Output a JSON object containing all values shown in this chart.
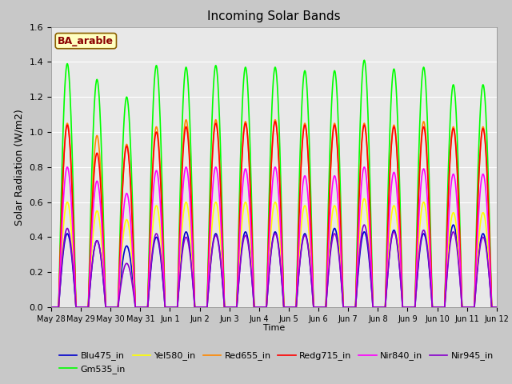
{
  "title": "Incoming Solar Bands",
  "xlabel": "Time",
  "ylabel": "Solar Radiation (W/m2)",
  "ylim": [
    0,
    1.6
  ],
  "fig_bg": "#c8c8c8",
  "plot_bg": "#e8e8e8",
  "annotation_text": "BA_arable",
  "annotation_color": "#8b0000",
  "annotation_bg": "#ffffc0",
  "annotation_border": "#8b6000",
  "series": [
    {
      "label": "Blu475_in",
      "color": "#0000cc",
      "lw": 1.2
    },
    {
      "label": "Gm535_in",
      "color": "#00ff00",
      "lw": 1.2
    },
    {
      "label": "Yel580_in",
      "color": "#ffff00",
      "lw": 1.2
    },
    {
      "label": "Red655_in",
      "color": "#ff8800",
      "lw": 1.2
    },
    {
      "label": "Redg715_in",
      "color": "#ff0000",
      "lw": 1.2
    },
    {
      "label": "Nir840_in",
      "color": "#ff00ff",
      "lw": 1.2
    },
    {
      "label": "Nir945_in",
      "color": "#8800cc",
      "lw": 1.2
    }
  ],
  "n_days": 15,
  "xtick_labels": [
    "May 28",
    "May 29",
    "May 30",
    "May 31",
    "Jun 1",
    "Jun 2",
    "Jun 3",
    "Jun 4",
    "Jun 5",
    "Jun 6",
    "Jun 7",
    "Jun 8",
    "Jun 9",
    "Jun 10",
    "Jun 11",
    "Jun 12"
  ],
  "scales_variation": {
    "Blu475_in": [
      0.42,
      0.38,
      0.35,
      0.4,
      0.43,
      0.42,
      0.43,
      0.43,
      0.42,
      0.45,
      0.43,
      0.44,
      0.42,
      0.47,
      0.42
    ],
    "Gm535_in": [
      1.39,
      1.3,
      1.2,
      1.38,
      1.37,
      1.38,
      1.37,
      1.37,
      1.35,
      1.35,
      1.41,
      1.36,
      1.37,
      1.27,
      1.27
    ],
    "Yel580_in": [
      0.6,
      0.55,
      0.5,
      0.58,
      0.6,
      0.6,
      0.6,
      0.6,
      0.58,
      0.58,
      0.62,
      0.58,
      0.6,
      0.54,
      0.54
    ],
    "Red655_in": [
      1.05,
      0.98,
      0.93,
      1.03,
      1.07,
      1.07,
      1.06,
      1.07,
      1.05,
      1.05,
      1.05,
      1.04,
      1.06,
      1.03,
      1.03
    ],
    "Redg715_in": [
      1.04,
      0.88,
      0.92,
      1.0,
      1.03,
      1.05,
      1.05,
      1.06,
      1.04,
      1.04,
      1.04,
      1.03,
      1.03,
      1.02,
      1.02
    ],
    "Nir840_in": [
      0.8,
      0.72,
      0.65,
      0.78,
      0.8,
      0.8,
      0.79,
      0.8,
      0.75,
      0.75,
      0.8,
      0.77,
      0.79,
      0.76,
      0.76
    ],
    "Nir945_in": [
      0.45,
      0.38,
      0.25,
      0.42,
      0.4,
      0.41,
      0.41,
      0.42,
      0.41,
      0.42,
      0.47,
      0.43,
      0.44,
      0.43,
      0.4
    ]
  },
  "figsize": [
    6.4,
    4.8
  ],
  "dpi": 100
}
